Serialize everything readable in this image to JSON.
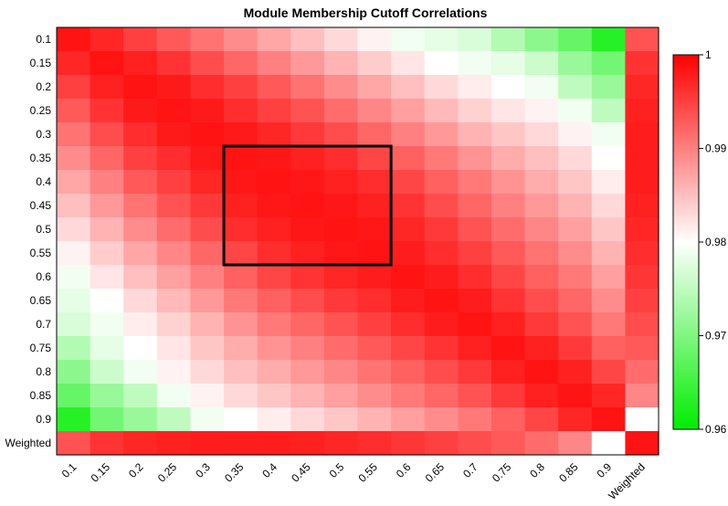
{
  "chart_data": {
    "type": "heatmap",
    "title": "Module Membership Cutoff Correlations",
    "row_labels": [
      "0.1",
      "0.15",
      "0.2",
      "0.25",
      "0.3",
      "0.35",
      "0.4",
      "0.45",
      "0.5",
      "0.55",
      "0.6",
      "0.65",
      "0.7",
      "0.75",
      "0.8",
      "0.85",
      "0.9",
      "Weighted"
    ],
    "col_labels": [
      "0.1",
      "0.15",
      "0.2",
      "0.25",
      "0.3",
      "0.35",
      "0.4",
      "0.45",
      "0.5",
      "0.55",
      "0.6",
      "0.65",
      "0.7",
      "0.75",
      "0.8",
      "0.85",
      "0.9",
      "Weighted"
    ],
    "colorbar": {
      "min": 0.96,
      "max": 1,
      "ticks": [
        0.96,
        0.97,
        0.98,
        0.99,
        1
      ],
      "tick_labels": [
        "0.96",
        "0.97",
        "0.98",
        "0.99",
        "1"
      ],
      "low_color": "#00ee00",
      "mid_color": "#ffffff",
      "high_color": "#ff0000"
    },
    "highlight_box": {
      "row_start": "0.35",
      "row_end": "0.55",
      "col_start": "0.35",
      "col_end": "0.55"
    },
    "values": [
      [
        0.9985,
        0.997,
        0.995,
        0.993,
        0.991,
        0.989,
        0.987,
        0.985,
        0.983,
        0.981,
        0.979,
        0.978,
        0.977,
        0.974,
        0.971,
        0.968,
        0.963,
        0.9935
      ],
      [
        0.997,
        0.9985,
        0.9975,
        0.996,
        0.994,
        0.992,
        0.99,
        0.988,
        0.986,
        0.984,
        0.982,
        0.98,
        0.979,
        0.978,
        0.976,
        0.972,
        0.969,
        0.996
      ],
      [
        0.995,
        0.9975,
        0.9985,
        0.998,
        0.9965,
        0.995,
        0.993,
        0.991,
        0.989,
        0.987,
        0.985,
        0.983,
        0.9815,
        0.98,
        0.979,
        0.975,
        0.972,
        0.997
      ],
      [
        0.993,
        0.996,
        0.998,
        0.9985,
        0.998,
        0.9965,
        0.995,
        0.9935,
        0.9915,
        0.9895,
        0.9875,
        0.9855,
        0.9835,
        0.982,
        0.981,
        0.979,
        0.975,
        0.9975
      ],
      [
        0.991,
        0.994,
        0.9965,
        0.998,
        0.9985,
        0.998,
        0.997,
        0.9955,
        0.994,
        0.992,
        0.99,
        0.988,
        0.986,
        0.9845,
        0.983,
        0.981,
        0.979,
        0.9978
      ],
      [
        0.989,
        0.992,
        0.995,
        0.9965,
        0.998,
        0.9985,
        0.9982,
        0.9975,
        0.9965,
        0.9945,
        0.9925,
        0.9905,
        0.9885,
        0.9865,
        0.985,
        0.983,
        0.98,
        0.9978
      ],
      [
        0.987,
        0.99,
        0.993,
        0.995,
        0.997,
        0.9982,
        0.9985,
        0.9982,
        0.9975,
        0.9965,
        0.9945,
        0.9925,
        0.9905,
        0.9885,
        0.9865,
        0.9845,
        0.9815,
        0.9978
      ],
      [
        0.985,
        0.988,
        0.991,
        0.9935,
        0.9955,
        0.9975,
        0.9982,
        0.9985,
        0.9982,
        0.9975,
        0.996,
        0.994,
        0.992,
        0.99,
        0.988,
        0.986,
        0.983,
        0.9975
      ],
      [
        0.983,
        0.986,
        0.989,
        0.9915,
        0.994,
        0.9965,
        0.9975,
        0.9982,
        0.9985,
        0.9982,
        0.997,
        0.9955,
        0.9935,
        0.9915,
        0.9895,
        0.9875,
        0.9845,
        0.997
      ],
      [
        0.981,
        0.984,
        0.987,
        0.9895,
        0.992,
        0.9945,
        0.9965,
        0.9975,
        0.9982,
        0.9985,
        0.9978,
        0.9965,
        0.995,
        0.993,
        0.991,
        0.989,
        0.986,
        0.9965
      ],
      [
        0.979,
        0.982,
        0.985,
        0.9875,
        0.99,
        0.9925,
        0.9945,
        0.996,
        0.997,
        0.9978,
        0.9985,
        0.9978,
        0.9965,
        0.9945,
        0.9925,
        0.9905,
        0.9875,
        0.9958
      ],
      [
        0.978,
        0.98,
        0.983,
        0.9855,
        0.988,
        0.9905,
        0.9925,
        0.994,
        0.9955,
        0.9965,
        0.9978,
        0.9985,
        0.9978,
        0.996,
        0.994,
        0.992,
        0.989,
        0.995
      ],
      [
        0.977,
        0.979,
        0.9815,
        0.9835,
        0.986,
        0.9885,
        0.9905,
        0.992,
        0.9935,
        0.995,
        0.9965,
        0.9978,
        0.9985,
        0.9975,
        0.9955,
        0.9935,
        0.9905,
        0.994
      ],
      [
        0.974,
        0.978,
        0.98,
        0.982,
        0.9845,
        0.9865,
        0.9885,
        0.99,
        0.9915,
        0.993,
        0.9945,
        0.996,
        0.9975,
        0.9985,
        0.9975,
        0.9955,
        0.9925,
        0.993
      ],
      [
        0.971,
        0.976,
        0.979,
        0.981,
        0.983,
        0.985,
        0.9865,
        0.988,
        0.9895,
        0.991,
        0.9925,
        0.994,
        0.9955,
        0.9975,
        0.9985,
        0.9975,
        0.9945,
        0.9915
      ],
      [
        0.968,
        0.972,
        0.975,
        0.979,
        0.981,
        0.983,
        0.9845,
        0.986,
        0.9875,
        0.989,
        0.9905,
        0.992,
        0.9935,
        0.9955,
        0.9975,
        0.9985,
        0.997,
        0.9895
      ],
      [
        0.963,
        0.969,
        0.972,
        0.975,
        0.979,
        0.98,
        0.9815,
        0.983,
        0.9845,
        0.986,
        0.9875,
        0.989,
        0.9905,
        0.9925,
        0.9945,
        0.997,
        0.9985,
        0.98
      ],
      [
        0.9935,
        0.996,
        0.997,
        0.9975,
        0.9978,
        0.9978,
        0.9978,
        0.9975,
        0.997,
        0.9965,
        0.9958,
        0.995,
        0.994,
        0.993,
        0.9915,
        0.9895,
        0.98,
        0.9985
      ]
    ]
  }
}
